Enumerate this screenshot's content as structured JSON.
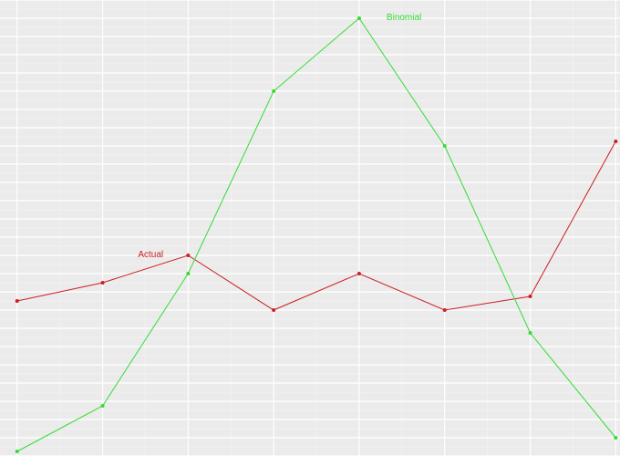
{
  "chart_data": {
    "type": "line",
    "title": "",
    "xlabel": "",
    "ylabel": "",
    "x": [
      0,
      1,
      2,
      3,
      4,
      5,
      6,
      7
    ],
    "xlim": [
      -0.2,
      7.05
    ],
    "ylim": [
      0,
      1
    ],
    "grid": true,
    "legend": "none",
    "series": [
      {
        "name": "Actual",
        "color": "#cc1f24",
        "values": [
          0.34,
          0.38,
          0.44,
          0.32,
          0.4,
          0.32,
          0.35,
          0.69
        ]
      },
      {
        "name": "Binomial",
        "color": "#33dd33",
        "values": [
          0.01,
          0.11,
          0.4,
          0.8,
          0.96,
          0.68,
          0.27,
          0.04
        ]
      }
    ]
  }
}
